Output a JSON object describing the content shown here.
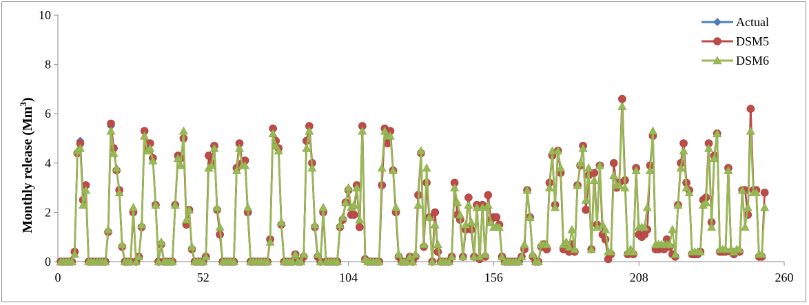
{
  "chart_data": {
    "type": "line",
    "title": "",
    "xlabel": "",
    "ylabel": "Monthly release (Mm",
    "ylabel_sup": "3",
    "ylabel_close": ")",
    "xlim": [
      0,
      260
    ],
    "ylim": [
      0,
      10
    ],
    "x_ticks": [
      0,
      52,
      104,
      156,
      208,
      260
    ],
    "y_ticks": [
      0,
      2,
      4,
      6,
      8,
      10
    ],
    "grid": false,
    "legend_position": "top-right",
    "series": [
      {
        "name": "Actual",
        "color": "#4a7ebb",
        "marker": "diamond",
        "values": [
          0,
          0,
          0,
          0,
          0,
          0.4,
          4.4,
          4.9,
          2.5,
          3.1,
          0,
          0,
          0,
          0,
          0,
          0,
          0,
          1.2,
          5.5,
          4.6,
          3.7,
          2.9,
          0.6,
          0,
          0,
          0,
          2.0,
          0,
          0.2,
          1.4,
          5.3,
          4.6,
          4.8,
          4.2,
          2.3,
          0,
          0.7,
          0,
          0,
          0,
          0,
          2.3,
          4.3,
          4.2,
          5.0,
          1.5,
          2.1,
          0.5,
          0,
          0,
          0,
          0,
          0.2,
          4.3,
          4.0,
          4.7,
          2.1,
          1.1,
          0,
          0,
          0,
          0,
          0,
          3.8,
          4.8,
          4.0,
          4.1,
          2.0,
          0,
          0,
          0,
          0,
          0,
          0,
          0,
          0.9,
          5.4,
          4.9,
          4.6,
          1.5,
          0,
          0,
          0,
          0,
          0.3,
          0,
          0,
          0.2,
          4.9,
          5.5,
          4.0,
          1.4,
          0.2,
          0,
          2.0,
          0,
          0,
          0,
          0,
          0,
          1.4,
          1.7,
          2.4,
          2.9,
          1.9,
          1.9,
          3.1,
          1.4,
          5.5,
          0.1,
          0,
          0,
          0,
          0,
          0,
          3.1,
          5.4,
          4.8,
          5.3,
          3.7,
          2.0,
          0.2,
          0,
          0,
          0,
          0.2,
          0,
          0.2,
          2.7,
          4.4,
          0.6,
          3.2,
          1.8,
          0,
          2.0,
          0.4,
          0,
          0,
          0,
          0,
          0.2,
          3.2,
          1.9,
          1.7,
          0.2,
          1.3,
          2.6,
          1.3,
          0.2,
          2.3,
          0.1,
          2.3,
          0.2,
          2.7,
          1.7,
          1.8,
          1.8,
          1.5,
          0.2,
          0,
          0,
          0,
          0,
          0,
          0,
          0.2,
          0.5,
          2.9,
          1.8,
          0.2,
          0,
          0,
          0.6,
          0.7,
          0.5,
          3.2,
          4.3,
          2.3,
          4.5,
          3.6,
          0.5,
          0.7,
          0.4,
          0.7,
          0.4,
          3.1,
          3.9,
          4.7,
          2.1,
          3.5,
          0.5,
          3.6,
          1.5,
          3.9,
          1.1,
          0.9,
          0.1,
          0.3,
          4.0,
          3.0,
          3.2,
          6.6,
          3.3,
          0.3,
          0.4,
          0.3,
          3.8,
          1.1,
          1.0,
          1.1,
          1.3,
          3.9,
          5.1,
          0.5,
          0.5,
          0.6,
          0.5,
          0.9,
          0.6,
          0.3,
          0.2,
          2.3,
          4.0,
          4.8,
          3.2,
          2.9,
          0.3,
          0.3,
          0.3,
          0.4,
          2.5,
          2.6,
          4.8,
          1.6,
          4.3,
          5.2,
          0.4,
          0.4,
          0.4,
          3.8,
          0.4,
          0.3,
          0.4,
          0.4,
          2.9,
          2.9,
          1.9,
          6.2,
          2.9,
          2.9,
          0.2,
          0.2,
          2.8
        ]
      },
      {
        "name": "DSM5",
        "color": "#be4b48",
        "marker": "circle",
        "values": [
          0,
          0,
          0,
          0,
          0,
          0.4,
          4.4,
          4.8,
          2.5,
          3.1,
          0,
          0,
          0,
          0,
          0,
          0,
          0,
          1.2,
          5.6,
          4.6,
          3.7,
          2.9,
          0.6,
          0,
          0,
          0,
          2.0,
          0,
          0.2,
          1.4,
          5.3,
          4.6,
          4.8,
          4.2,
          2.3,
          0,
          0.7,
          0,
          0,
          0,
          0,
          2.3,
          4.3,
          4.2,
          5.0,
          1.5,
          2.1,
          0.5,
          0,
          0,
          0,
          0,
          0.2,
          4.3,
          4.0,
          4.7,
          2.1,
          1.1,
          0,
          0,
          0,
          0,
          0,
          3.8,
          4.8,
          4.0,
          4.1,
          2.0,
          0,
          0,
          0,
          0,
          0,
          0,
          0,
          0.9,
          5.4,
          4.9,
          4.6,
          1.5,
          0,
          0,
          0,
          0,
          0.3,
          0,
          0,
          0.2,
          4.9,
          5.5,
          4.0,
          1.4,
          0.2,
          0,
          2.0,
          0,
          0,
          0,
          0,
          0,
          1.4,
          1.7,
          2.4,
          2.9,
          1.9,
          1.9,
          3.1,
          1.4,
          5.5,
          0.1,
          0,
          0,
          0,
          0,
          0,
          3.1,
          5.4,
          4.8,
          5.3,
          3.7,
          2.0,
          0.2,
          0,
          0,
          0,
          0.2,
          0,
          0.2,
          2.7,
          4.4,
          0.6,
          3.2,
          1.8,
          0,
          2.0,
          0.4,
          0,
          0,
          0,
          0,
          0.2,
          3.2,
          1.9,
          1.7,
          0.2,
          1.3,
          2.6,
          1.3,
          0.2,
          2.3,
          0.1,
          2.3,
          0.2,
          2.7,
          1.7,
          1.8,
          1.8,
          1.5,
          0.2,
          0,
          0,
          0,
          0,
          0,
          0,
          0.2,
          0.5,
          2.9,
          1.8,
          0.2,
          0,
          0,
          0.6,
          0.7,
          0.5,
          3.2,
          4.3,
          2.3,
          4.5,
          3.6,
          0.5,
          0.7,
          0.4,
          0.7,
          0.4,
          3.1,
          3.9,
          4.7,
          2.1,
          3.5,
          0.5,
          3.6,
          1.5,
          3.9,
          1.1,
          0.9,
          0.1,
          0.3,
          4.0,
          3.0,
          3.2,
          6.6,
          3.3,
          0.3,
          0.4,
          0.3,
          3.8,
          1.1,
          1.0,
          1.1,
          1.3,
          3.9,
          5.1,
          0.5,
          0.5,
          0.6,
          0.5,
          0.9,
          0.6,
          0.3,
          0.2,
          2.3,
          4.0,
          4.8,
          3.2,
          2.9,
          0.3,
          0.3,
          0.3,
          0.4,
          2.5,
          2.6,
          4.8,
          1.6,
          4.3,
          5.2,
          0.4,
          0.4,
          0.4,
          3.8,
          0.4,
          0.3,
          0.4,
          0.4,
          2.9,
          2.9,
          1.9,
          6.2,
          2.9,
          2.9,
          0.2,
          0.2,
          2.8
        ]
      },
      {
        "name": "DSM6",
        "color": "#98b954",
        "marker": "triangle",
        "values": [
          0,
          0,
          0,
          0,
          0,
          0.3,
          4.5,
          4.6,
          2.3,
          2.9,
          0,
          0,
          0,
          0,
          0,
          0,
          0,
          1.3,
          5.3,
          4.4,
          3.8,
          2.8,
          0.7,
          0,
          0,
          0,
          2.2,
          0,
          0.2,
          1.5,
          5.1,
          4.5,
          4.6,
          4.1,
          2.3,
          0,
          0.8,
          0,
          0,
          0,
          0,
          2.3,
          4.2,
          3.9,
          5.3,
          1.7,
          2.1,
          0.6,
          0,
          0,
          0,
          0,
          0.2,
          3.8,
          3.9,
          4.6,
          2.2,
          1.4,
          0,
          0,
          0,
          0,
          0,
          3.7,
          4.6,
          3.9,
          3.9,
          2.2,
          0,
          0,
          0,
          0,
          0,
          0,
          0,
          0.8,
          5.2,
          4.7,
          4.5,
          1.6,
          0,
          0,
          0,
          0,
          0.3,
          0,
          0,
          0.3,
          4.6,
          5.3,
          3.8,
          1.5,
          0.3,
          0,
          2.2,
          0,
          0,
          0,
          0,
          0,
          1.5,
          1.8,
          2.4,
          3.0,
          2.2,
          2.3,
          3.0,
          1.7,
          5.3,
          0.1,
          0,
          0,
          0,
          0,
          0,
          3.8,
          5.3,
          5.1,
          5.1,
          3.7,
          2.2,
          0.3,
          0,
          0,
          0,
          0.2,
          0,
          0.3,
          2.3,
          4.5,
          0.7,
          3.8,
          1.8,
          0,
          1.5,
          0.7,
          0,
          0,
          0,
          0,
          0.2,
          3.0,
          2.4,
          1.9,
          0.2,
          1.5,
          2.3,
          1.6,
          0.2,
          2.2,
          0.2,
          2.2,
          0.3,
          2.3,
          1.6,
          1.4,
          1.4,
          1.4,
          0.2,
          0,
          0,
          0,
          0,
          0,
          0,
          0.2,
          0.7,
          2.9,
          1.8,
          0.3,
          0,
          0,
          0.7,
          0.7,
          0.7,
          3.0,
          4.5,
          2.2,
          4.5,
          3.8,
          0.7,
          0.8,
          0.6,
          1.3,
          0.5,
          3.1,
          4.0,
          4.6,
          2.5,
          3.8,
          0.5,
          3.3,
          1.4,
          3.9,
          1.5,
          1.3,
          0.4,
          0.4,
          3.5,
          3.1,
          3.1,
          6.3,
          3.0,
          0.4,
          0.5,
          0.4,
          3.7,
          1.4,
          1.4,
          1.4,
          2.2,
          3.7,
          5.3,
          0.7,
          0.7,
          0.7,
          0.7,
          0.7,
          0.7,
          1.3,
          0.3,
          2.3,
          3.8,
          4.5,
          3.0,
          2.8,
          0.4,
          0.4,
          0.4,
          0.4,
          2.3,
          2.4,
          4.6,
          1.4,
          4.2,
          5.2,
          0.5,
          0.5,
          0.5,
          3.7,
          0.5,
          0.4,
          0.5,
          0.5,
          2.9,
          1.4,
          2.2,
          5.3,
          2.8,
          2.8,
          0.3,
          0.3,
          2.2
        ]
      }
    ]
  }
}
